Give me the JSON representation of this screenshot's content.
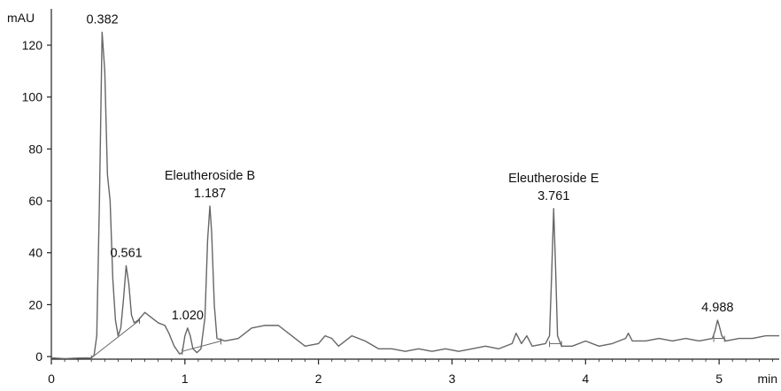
{
  "chart_data": {
    "type": "line",
    "title": "",
    "xlabel": "min",
    "ylabel": "mAU",
    "xlim": [
      0,
      5.45
    ],
    "ylim": [
      -1,
      134
    ],
    "x_ticks": [
      0,
      1,
      2,
      3,
      4,
      5
    ],
    "x_tick_labels": [
      "0",
      "1",
      "2",
      "3",
      "4",
      "5"
    ],
    "y_ticks": [
      0,
      20,
      40,
      60,
      80,
      100,
      120
    ],
    "y_tick_labels": [
      "0",
      "20",
      "40",
      "60",
      "80",
      "100",
      "120"
    ],
    "grid": false,
    "colors": {
      "trace": "#666666",
      "axis": "#222222",
      "text": "#111111"
    },
    "series": [
      {
        "points": [
          [
            0.0,
            -0.5
          ],
          [
            0.1,
            -0.8
          ],
          [
            0.2,
            -0.6
          ],
          [
            0.3,
            -0.5
          ],
          [
            0.32,
            0.5
          ],
          [
            0.34,
            8
          ],
          [
            0.36,
            60
          ],
          [
            0.38,
            125
          ],
          [
            0.4,
            110
          ],
          [
            0.42,
            70
          ],
          [
            0.44,
            60
          ],
          [
            0.46,
            30
          ],
          [
            0.48,
            14
          ],
          [
            0.5,
            8
          ],
          [
            0.52,
            11
          ],
          [
            0.54,
            22
          ],
          [
            0.56,
            35
          ],
          [
            0.58,
            28
          ],
          [
            0.6,
            16
          ],
          [
            0.62,
            13
          ],
          [
            0.65,
            14
          ],
          [
            0.7,
            17
          ],
          [
            0.75,
            15
          ],
          [
            0.8,
            13
          ],
          [
            0.85,
            12
          ],
          [
            0.88,
            9
          ],
          [
            0.92,
            4
          ],
          [
            0.96,
            1
          ],
          [
            0.98,
            1.5
          ],
          [
            1.0,
            8
          ],
          [
            1.02,
            11
          ],
          [
            1.04,
            8
          ],
          [
            1.06,
            3
          ],
          [
            1.09,
            1.5
          ],
          [
            1.12,
            3
          ],
          [
            1.15,
            15
          ],
          [
            1.17,
            45
          ],
          [
            1.187,
            58
          ],
          [
            1.2,
            48
          ],
          [
            1.22,
            20
          ],
          [
            1.24,
            7
          ],
          [
            1.3,
            6
          ],
          [
            1.4,
            7
          ],
          [
            1.5,
            11
          ],
          [
            1.6,
            12
          ],
          [
            1.7,
            12
          ],
          [
            1.8,
            8
          ],
          [
            1.9,
            4
          ],
          [
            2.0,
            5
          ],
          [
            2.05,
            8
          ],
          [
            2.1,
            7
          ],
          [
            2.15,
            4
          ],
          [
            2.25,
            8
          ],
          [
            2.35,
            6
          ],
          [
            2.45,
            3
          ],
          [
            2.55,
            3
          ],
          [
            2.65,
            2
          ],
          [
            2.75,
            3
          ],
          [
            2.85,
            2
          ],
          [
            2.95,
            3
          ],
          [
            3.05,
            2
          ],
          [
            3.15,
            3
          ],
          [
            3.25,
            4
          ],
          [
            3.35,
            3
          ],
          [
            3.45,
            5
          ],
          [
            3.48,
            9
          ],
          [
            3.52,
            5
          ],
          [
            3.56,
            8
          ],
          [
            3.6,
            4
          ],
          [
            3.7,
            5
          ],
          [
            3.73,
            8
          ],
          [
            3.745,
            30
          ],
          [
            3.761,
            57
          ],
          [
            3.775,
            35
          ],
          [
            3.79,
            8
          ],
          [
            3.82,
            4
          ],
          [
            3.9,
            4
          ],
          [
            4.0,
            6
          ],
          [
            4.1,
            4
          ],
          [
            4.2,
            5
          ],
          [
            4.3,
            7
          ],
          [
            4.32,
            9
          ],
          [
            4.35,
            6
          ],
          [
            4.45,
            6
          ],
          [
            4.55,
            7
          ],
          [
            4.65,
            6
          ],
          [
            4.75,
            7
          ],
          [
            4.85,
            6
          ],
          [
            4.95,
            7
          ],
          [
            4.97,
            10
          ],
          [
            4.988,
            14
          ],
          [
            5.0,
            12
          ],
          [
            5.02,
            8
          ],
          [
            5.05,
            6
          ],
          [
            5.15,
            7
          ],
          [
            5.25,
            7
          ],
          [
            5.35,
            8
          ],
          [
            5.45,
            8
          ]
        ]
      }
    ],
    "baselines": [
      [
        [
          0.3,
          -0.5
        ],
        [
          0.66,
          14
        ]
      ],
      [
        [
          0.98,
          2
        ],
        [
          1.27,
          6
        ]
      ],
      [
        [
          3.73,
          5
        ],
        [
          3.82,
          5
        ]
      ],
      [
        [
          4.96,
          7
        ],
        [
          5.04,
          7
        ]
      ]
    ],
    "annotations": [
      {
        "x": 0.382,
        "y": 125,
        "lines": [
          "0.382"
        ]
      },
      {
        "x": 0.561,
        "y": 35,
        "lines": [
          "0.561"
        ]
      },
      {
        "x": 1.02,
        "y": 11,
        "lines": [
          "1.020"
        ]
      },
      {
        "x": 1.187,
        "y": 58,
        "lines": [
          "Eleutheroside B",
          "1.187"
        ]
      },
      {
        "x": 3.761,
        "y": 57,
        "lines": [
          "Eleutheroside E",
          "3.761"
        ]
      },
      {
        "x": 4.988,
        "y": 14,
        "lines": [
          "4.988"
        ]
      }
    ]
  }
}
